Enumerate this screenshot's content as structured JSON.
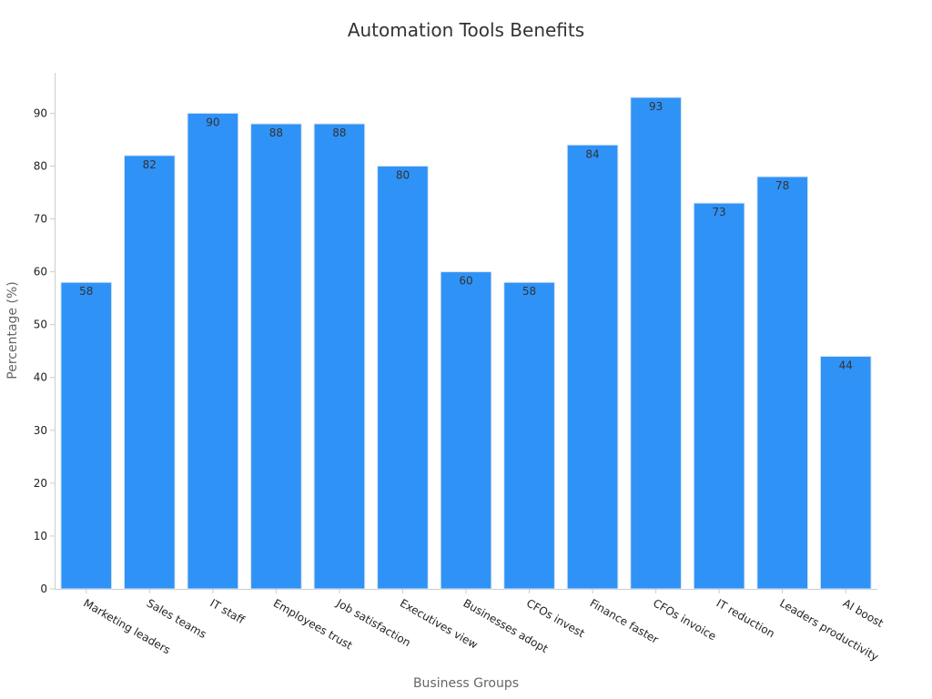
{
  "chart_data": {
    "type": "bar",
    "title": "Automation Tools Benefits",
    "xlabel": "Business Groups",
    "ylabel": "Percentage (%)",
    "categories": [
      "Marketing leaders",
      "Sales teams",
      "IT staff",
      "Employees trust",
      "Job satisfaction",
      "Executives view",
      "Businesses adopt",
      "CFOs invest",
      "Finance faster",
      "CFOs invoice",
      "IT reduction",
      "Leaders productivity",
      "AI boost"
    ],
    "values": [
      58,
      82,
      90,
      88,
      88,
      80,
      60,
      58,
      84,
      93,
      73,
      78,
      44
    ],
    "ylim": [
      0,
      97.65
    ],
    "yticks": [
      0,
      10,
      20,
      30,
      40,
      50,
      60,
      70,
      80,
      90
    ],
    "bar_color": "#2f92f6",
    "grid": false,
    "legend": "none"
  }
}
